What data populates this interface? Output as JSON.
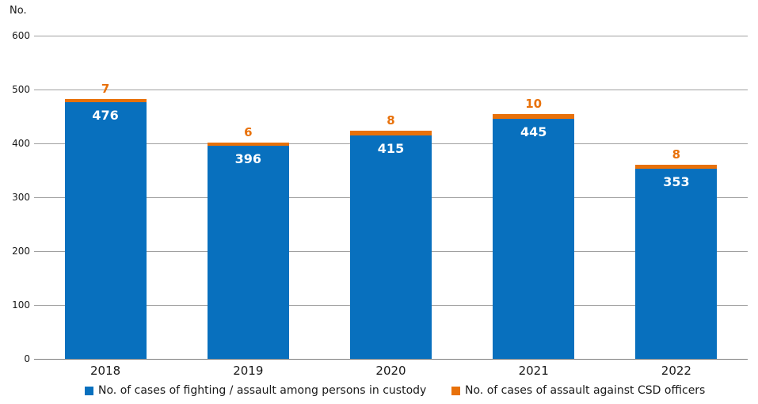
{
  "chart_data": {
    "type": "bar",
    "stacked": true,
    "title": "",
    "unit_label": "No.",
    "categories": [
      "2018",
      "2019",
      "2020",
      "2021",
      "2022"
    ],
    "series": [
      {
        "name": "No. of cases of fighting / assault among persons in custody",
        "color": "#0870be",
        "values": [
          476,
          396,
          415,
          445,
          353
        ],
        "label_color": "#ffffff",
        "label_position": "inside-top"
      },
      {
        "name": "No. of cases of assault against CSD officers",
        "color": "#e8710a",
        "values": [
          7,
          6,
          8,
          10,
          8
        ],
        "label_color": "#e8710a",
        "label_position": "above-stack"
      }
    ],
    "ylabel": "No.",
    "xlabel": "",
    "ylim": [
      0,
      600
    ],
    "yticks": [
      0,
      100,
      200,
      300,
      400,
      500,
      600
    ],
    "grid": true,
    "gridline_color": "#a0a0a0",
    "legend_position": "bottom"
  }
}
